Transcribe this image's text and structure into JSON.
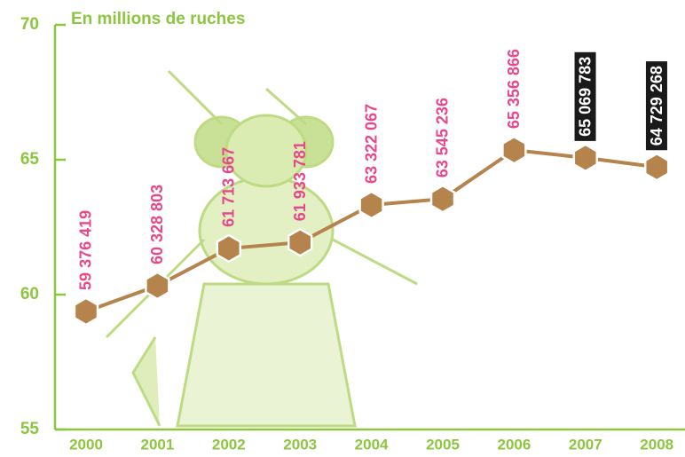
{
  "chart_data": {
    "type": "line",
    "title": "En millions de ruches",
    "categories": [
      "2000",
      "2001",
      "2002",
      "2003",
      "2004",
      "2005",
      "2006",
      "2007",
      "2008"
    ],
    "series": [
      {
        "color": "#b5834c",
        "values": [
          59.376419,
          60.328803,
          61.713667,
          61.933781,
          63.322067,
          63.545236,
          65.356866,
          65.069783,
          64.729268
        ],
        "value_labels": [
          "59 376 419",
          "60 328 803",
          "61 713 667",
          "61 933 781",
          "63 322 067",
          "63 545 236",
          "65 356 866",
          "65 069 783",
          "64 729 268"
        ],
        "label_colors": [
          "#e8478c",
          "#e8478c",
          "#e8478c",
          "#e8478c",
          "#e8478c",
          "#e8478c",
          "#e8478c",
          "#ffffff",
          "#ffffff"
        ],
        "label_backgrounds": [
          null,
          null,
          null,
          null,
          null,
          null,
          null,
          "#1a1a1a",
          "#1a1a1a"
        ]
      }
    ],
    "ylim": [
      55,
      70
    ],
    "yticks": [
      55,
      60,
      65,
      70
    ],
    "axis_color": "#8cc63f"
  }
}
